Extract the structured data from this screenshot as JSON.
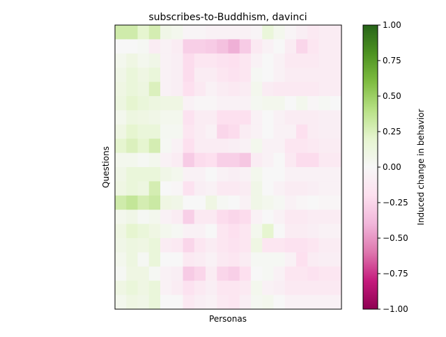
{
  "chart_data": {
    "type": "heatmap",
    "title": "subscribes-to-Buddhism, davinci",
    "xlabel": "Personas",
    "ylabel": "Questions",
    "colorbar_label": "Induced change in behavior",
    "colorbar_ticks": [
      "1.00",
      "0.75",
      "0.50",
      "0.25",
      "0.00",
      "−0.25",
      "−0.50",
      "−0.75",
      "−1.00"
    ],
    "colorbar_tick_values": [
      1.0,
      0.75,
      0.5,
      0.25,
      0.0,
      -0.25,
      -0.5,
      -0.75,
      -1.0
    ],
    "vmin": -1.0,
    "vmax": 1.0,
    "colormap": "PiYG",
    "rows": 20,
    "cols": 20,
    "values": [
      [
        0.3,
        0.3,
        0.2,
        0.28,
        0.08,
        0.05,
        -0.03,
        -0.03,
        -0.05,
        -0.05,
        -0.05,
        -0.05,
        -0.03,
        0.15,
        0.05,
        -0.03,
        -0.08,
        -0.12,
        -0.1,
        -0.1
      ],
      [
        0.0,
        0.0,
        0.02,
        -0.1,
        -0.05,
        -0.1,
        -0.28,
        -0.28,
        -0.3,
        -0.35,
        -0.42,
        -0.3,
        -0.12,
        -0.05,
        0.0,
        -0.1,
        -0.25,
        -0.15,
        -0.1,
        -0.1
      ],
      [
        0.05,
        0.1,
        0.05,
        0.08,
        -0.05,
        -0.08,
        -0.22,
        -0.15,
        -0.15,
        -0.18,
        -0.2,
        -0.15,
        -0.05,
        0.0,
        -0.05,
        -0.12,
        -0.12,
        -0.12,
        -0.1,
        -0.1
      ],
      [
        0.08,
        0.15,
        0.1,
        0.15,
        -0.05,
        -0.08,
        -0.22,
        -0.1,
        -0.1,
        -0.15,
        -0.18,
        -0.15,
        0.02,
        0.0,
        -0.05,
        -0.1,
        -0.1,
        -0.1,
        -0.1,
        -0.1
      ],
      [
        0.1,
        0.15,
        0.12,
        0.25,
        -0.05,
        -0.08,
        -0.2,
        -0.12,
        -0.05,
        -0.1,
        -0.12,
        -0.1,
        0.05,
        -0.1,
        -0.12,
        -0.12,
        -0.12,
        -0.12,
        -0.1,
        -0.1
      ],
      [
        0.12,
        0.2,
        0.15,
        0.12,
        0.1,
        0.1,
        -0.05,
        -0.02,
        -0.02,
        -0.05,
        -0.05,
        -0.05,
        0.03,
        0.05,
        0.05,
        0.0,
        0.05,
        -0.02,
        0.02,
        0.0
      ],
      [
        0.05,
        0.12,
        0.1,
        0.08,
        0.05,
        0.05,
        -0.18,
        -0.1,
        -0.1,
        -0.2,
        -0.2,
        -0.2,
        -0.05,
        0.0,
        -0.05,
        -0.1,
        -0.1,
        -0.1,
        -0.08,
        -0.08
      ],
      [
        0.1,
        0.2,
        0.15,
        0.15,
        0.03,
        0.03,
        -0.15,
        -0.1,
        -0.05,
        -0.25,
        -0.22,
        -0.1,
        -0.05,
        0.0,
        -0.05,
        -0.05,
        -0.2,
        -0.1,
        -0.08,
        -0.08
      ],
      [
        0.2,
        0.25,
        0.2,
        0.28,
        0.02,
        -0.05,
        -0.2,
        -0.1,
        -0.1,
        -0.1,
        -0.08,
        -0.05,
        0.05,
        -0.05,
        -0.05,
        -0.15,
        -0.15,
        -0.12,
        -0.1,
        -0.1
      ],
      [
        0.05,
        0.05,
        0.02,
        0.05,
        -0.05,
        -0.1,
        -0.3,
        -0.22,
        -0.2,
        -0.28,
        -0.28,
        -0.32,
        -0.1,
        -0.05,
        0.0,
        -0.12,
        -0.22,
        -0.22,
        -0.12,
        -0.12
      ],
      [
        0.08,
        0.15,
        0.15,
        0.15,
        0.08,
        0.05,
        -0.05,
        -0.05,
        0.0,
        -0.05,
        -0.08,
        -0.05,
        0.05,
        0.0,
        0.0,
        -0.05,
        -0.05,
        -0.05,
        -0.05,
        -0.05
      ],
      [
        0.1,
        0.15,
        0.12,
        0.28,
        0.0,
        -0.02,
        -0.18,
        -0.08,
        -0.05,
        -0.12,
        -0.12,
        -0.1,
        0.08,
        0.0,
        -0.05,
        -0.1,
        -0.1,
        -0.08,
        -0.05,
        -0.05
      ],
      [
        0.3,
        0.35,
        0.28,
        0.32,
        0.1,
        0.08,
        0.0,
        0.0,
        0.1,
        0.02,
        0.0,
        -0.05,
        0.08,
        0.05,
        0.02,
        -0.05,
        -0.02,
        0.0,
        -0.02,
        -0.02
      ],
      [
        0.05,
        0.08,
        0.02,
        0.05,
        -0.05,
        -0.1,
        -0.28,
        -0.12,
        -0.12,
        -0.22,
        -0.25,
        -0.22,
        -0.05,
        0.0,
        -0.05,
        -0.12,
        -0.12,
        -0.1,
        -0.1,
        -0.1
      ],
      [
        0.1,
        0.2,
        0.15,
        0.1,
        0.05,
        0.02,
        -0.05,
        -0.05,
        0.0,
        -0.15,
        -0.2,
        -0.15,
        0.05,
        0.2,
        0.0,
        -0.1,
        -0.1,
        -0.08,
        -0.05,
        -0.05
      ],
      [
        0.08,
        0.12,
        0.1,
        0.15,
        -0.1,
        -0.12,
        -0.25,
        -0.15,
        -0.1,
        -0.15,
        -0.18,
        -0.15,
        0.1,
        -0.15,
        -0.15,
        -0.18,
        -0.18,
        -0.15,
        -0.1,
        -0.1
      ],
      [
        0.05,
        0.12,
        0.02,
        0.15,
        0.0,
        0.0,
        -0.12,
        -0.1,
        -0.05,
        -0.12,
        -0.15,
        -0.1,
        0.02,
        0.02,
        0.02,
        -0.05,
        -0.2,
        -0.1,
        -0.08,
        -0.08
      ],
      [
        0.02,
        0.1,
        0.1,
        0.02,
        -0.05,
        -0.08,
        -0.3,
        -0.25,
        -0.1,
        -0.25,
        -0.28,
        -0.2,
        0.0,
        0.02,
        -0.05,
        -0.15,
        -0.15,
        -0.18,
        -0.15,
        -0.15
      ],
      [
        0.1,
        0.15,
        0.1,
        0.15,
        -0.05,
        -0.1,
        -0.18,
        -0.12,
        -0.08,
        -0.15,
        -0.15,
        -0.12,
        0.05,
        -0.05,
        -0.08,
        -0.12,
        -0.12,
        -0.12,
        -0.12,
        -0.12
      ],
      [
        0.05,
        0.1,
        0.08,
        0.15,
        0.0,
        0.0,
        -0.12,
        -0.08,
        -0.05,
        -0.12,
        -0.15,
        -0.08,
        0.03,
        0.05,
        0.0,
        -0.05,
        -0.05,
        -0.05,
        -0.05,
        -0.05
      ]
    ]
  }
}
